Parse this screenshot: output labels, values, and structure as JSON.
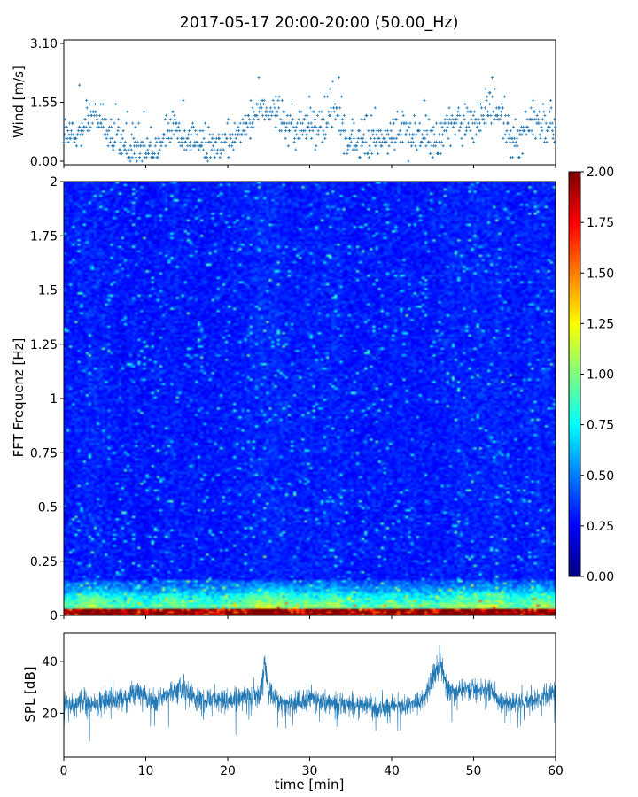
{
  "figure": {
    "title": "2017-05-17 20:00-20:00 (50.00_Hz)"
  },
  "colors": {
    "series": "#1f77b4",
    "colormap": [
      "#00007f",
      "#0000ff",
      "#007fff",
      "#00ffff",
      "#7fff7f",
      "#ffff00",
      "#ff7f00",
      "#ff0000",
      "#7f0000"
    ]
  },
  "chart_data": [
    {
      "type": "scatter",
      "panel": "wind",
      "ylabel": "Wind [m/s]",
      "ylim": [
        0.0,
        3.1
      ],
      "yticks": [
        "0.00",
        "1.55",
        "3.10"
      ],
      "xlim": [
        0,
        60
      ],
      "marker": "+",
      "series": [
        {
          "x": [
            0.5,
            1.5,
            2.5,
            3.5,
            4.5,
            5.5,
            6.5,
            7.5,
            8.5,
            9.5,
            10.5,
            11.5,
            12.5,
            13.5,
            14.5,
            15.5,
            16.5,
            17.5,
            18.5,
            19.5,
            20.5,
            21.5,
            22.5,
            23.5,
            24.5,
            25.5,
            26.5,
            27.5,
            28.5,
            29.5,
            30.5,
            31.5,
            32.5,
            33.5,
            34.5,
            35.5,
            36.5,
            37.5,
            38.5,
            39.5,
            40.5,
            41.5,
            42.5,
            43.5,
            44.5,
            45.5,
            46.5,
            47.5,
            48.5,
            49.5,
            50.5,
            51.5,
            52.5,
            53.5,
            54.5,
            55.5,
            56.5,
            57.5,
            58.5,
            59.5
          ],
          "y": [
            0.6,
            0.7,
            1.0,
            1.2,
            1.0,
            0.7,
            0.6,
            0.4,
            0.5,
            0.3,
            0.3,
            0.4,
            0.8,
            0.9,
            0.7,
            0.5,
            0.5,
            0.4,
            0.4,
            0.5,
            0.7,
            0.8,
            1.0,
            1.3,
            1.5,
            1.4,
            1.2,
            0.9,
            0.8,
            1.0,
            0.9,
            0.8,
            1.1,
            1.2,
            0.6,
            0.5,
            0.6,
            0.5,
            0.6,
            0.6,
            0.9,
            0.8,
            0.7,
            0.6,
            0.6,
            0.5,
            0.9,
            1.1,
            1.1,
            1.0,
            1.1,
            1.2,
            1.4,
            1.2,
            0.6,
            0.6,
            0.9,
            1.0,
            1.1,
            0.9
          ]
        }
      ]
    },
    {
      "type": "heatmap",
      "panel": "spectrogram",
      "ylabel": "FFT Frequenz [Hz]",
      "ylim": [
        0,
        2
      ],
      "yticks": [
        "0",
        "0.25",
        "0.5",
        "0.75",
        "1",
        "1.25",
        "1.5",
        "1.75",
        "2"
      ],
      "xlim": [
        0,
        60
      ],
      "colorbar": {
        "range": [
          0.0,
          2.0
        ],
        "ticks": [
          "0.00",
          "0.25",
          "0.50",
          "0.75",
          "1.00",
          "1.25",
          "1.50",
          "1.75",
          "2.00"
        ]
      }
    },
    {
      "type": "line",
      "panel": "spl",
      "ylabel": "SPL [dB]",
      "xlabel": "time [min]",
      "ylim": [
        3,
        51
      ],
      "yticks": [
        "20",
        "40"
      ],
      "xlim": [
        0,
        60
      ],
      "xticks": [
        "0",
        "10",
        "20",
        "30",
        "40",
        "50",
        "60"
      ],
      "series": [
        {
          "x": [
            0,
            2,
            4,
            6,
            8,
            9,
            11,
            13,
            14,
            16,
            18,
            20,
            22,
            24,
            24.5,
            25,
            26,
            28,
            30,
            32,
            34,
            36,
            38,
            40,
            42,
            44,
            45,
            46,
            47,
            48,
            50,
            52,
            54,
            56,
            58,
            60
          ],
          "y": [
            23,
            24,
            24,
            25,
            26,
            29,
            24,
            28,
            30,
            26,
            25,
            25,
            26,
            27,
            40,
            28,
            25,
            24,
            26,
            24,
            23,
            23,
            22,
            23,
            23,
            26,
            34,
            40,
            28,
            29,
            30,
            28,
            24,
            24,
            25,
            28
          ]
        }
      ]
    }
  ]
}
